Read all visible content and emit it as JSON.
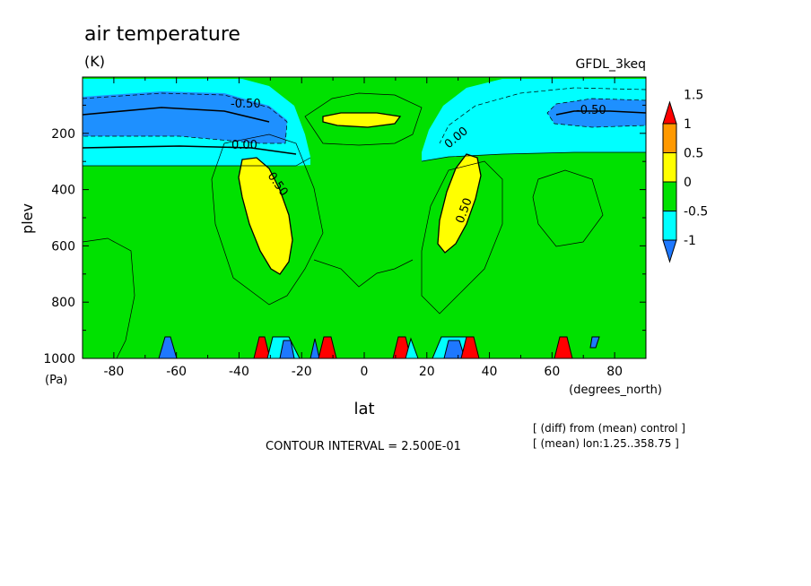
{
  "chart_data": {
    "type": "heatmap",
    "title": "air temperature",
    "units": "(K)",
    "dataset": "GFDL_3keq",
    "xlabel": "lat",
    "xunits": "(degrees_north)",
    "ylabel": "plev",
    "yunits": "(Pa)",
    "xlim": [
      -90,
      90
    ],
    "ylim": [
      1000,
      0
    ],
    "xticks": [
      -80,
      -60,
      -40,
      -20,
      0,
      20,
      40,
      60,
      80
    ],
    "yticks": [
      200,
      400,
      600,
      800,
      1000
    ],
    "colorbar": {
      "levels": [
        -1,
        -0.5,
        0,
        0.5,
        1,
        1.5
      ],
      "labels": [
        "-1",
        "-0.5",
        "0",
        "0.5",
        "1",
        "1.5"
      ],
      "colors": [
        "#1e78ff",
        "#00ffff",
        "#00e100",
        "#ffff00",
        "#ff9900",
        "#ff0000"
      ]
    },
    "contour_labels": [
      {
        "text": "-0.50",
        "x": -69,
        "y": 80
      },
      {
        "text": "0.00",
        "x": -66,
        "y": 230
      },
      {
        "text": "0.50",
        "x": -48,
        "y": 360
      },
      {
        "text": "0.00",
        "x": 28,
        "y": 220
      },
      {
        "text": "0.50",
        "x": 31,
        "y": 430
      },
      {
        "text": "-0.50",
        "x": 69,
        "y": 110
      }
    ],
    "contour_interval_text": "CONTOUR INTERVAL = 2.500E-01",
    "notes": [
      "[ (diff) from (mean) control ]",
      "[ (mean) lon:1.25..358.75 ]"
    ]
  }
}
